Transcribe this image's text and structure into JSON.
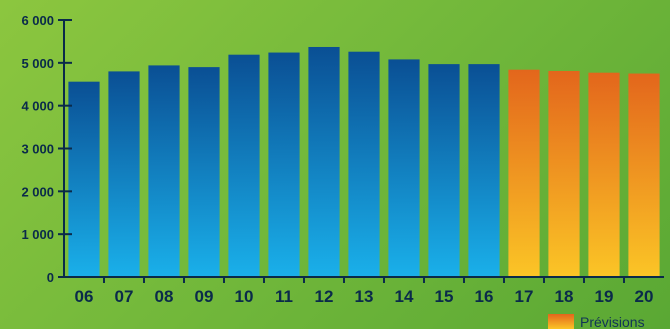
{
  "chart_data": {
    "type": "bar",
    "categories": [
      "06",
      "07",
      "08",
      "09",
      "10",
      "11",
      "12",
      "13",
      "14",
      "15",
      "16",
      "17",
      "18",
      "19",
      "20"
    ],
    "values": [
      4560,
      4800,
      4940,
      4900,
      5190,
      5240,
      5370,
      5260,
      5080,
      4970,
      4970,
      4840,
      4810,
      4770,
      4750
    ],
    "projected": [
      false,
      false,
      false,
      false,
      false,
      false,
      false,
      false,
      false,
      false,
      false,
      true,
      true,
      true,
      true
    ],
    "ylim": [
      0,
      6000
    ],
    "yticks": [
      0,
      1000,
      2000,
      3000,
      4000,
      5000,
      6000
    ],
    "ytick_labels": [
      "0",
      "1 000",
      "2 000",
      "3 000",
      "4 000",
      "5 000",
      "6 000"
    ],
    "legend": [
      {
        "label": "Prévisions",
        "color": "orange"
      }
    ],
    "legend_position": "bottom-right",
    "grid": false
  },
  "colors": {
    "background": "#7ab93a",
    "actual_top": "#0a4f94",
    "actual_bottom": "#1ab0ea",
    "projected_top": "#e3661c",
    "projected_bottom": "#fbc526",
    "axis": "#0a2a4a"
  }
}
